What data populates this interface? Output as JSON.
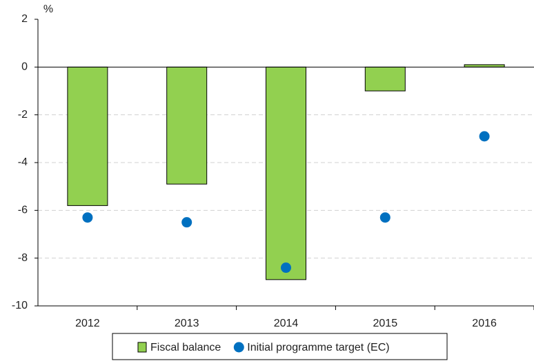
{
  "chart_data": {
    "type": "bar",
    "y_label": "%",
    "categories": [
      "2012",
      "2013",
      "2014",
      "2015",
      "2016"
    ],
    "series": [
      {
        "name": "Fiscal balance",
        "type": "bar",
        "color": "#92d050",
        "values": [
          -5.8,
          -4.9,
          -8.9,
          -1.0,
          0.1
        ]
      },
      {
        "name": "Initial programme target (EC)",
        "type": "scatter",
        "color": "#0070c0",
        "values": [
          -6.3,
          -6.5,
          -8.4,
          -6.3,
          -2.9
        ]
      }
    ],
    "ylim": [
      -10,
      2
    ],
    "yticks": [
      2,
      0,
      -2,
      -4,
      -6,
      -8,
      -10
    ],
    "grid": true,
    "legend": "bottom"
  }
}
